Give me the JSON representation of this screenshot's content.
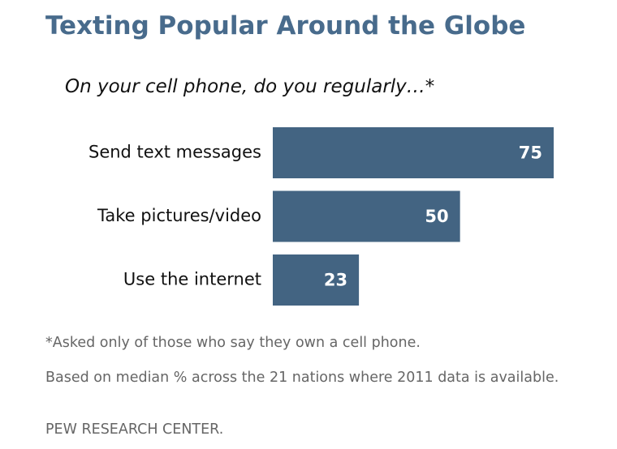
{
  "chart_data": {
    "type": "bar",
    "orientation": "horizontal",
    "title": "Texting Popular Around the Globe",
    "subtitle": "On your cell phone, do you regularly…*",
    "categories": [
      "Send text messages",
      "Take pictures/video",
      "Use the internet"
    ],
    "values": [
      75,
      50,
      23
    ],
    "color": "#436482",
    "notes": [
      "*Asked only of those who say they own a cell phone.",
      "Based on median % across the 21 nations where 2011 data is available.",
      "PEW RESEARCH CENTER."
    ]
  }
}
